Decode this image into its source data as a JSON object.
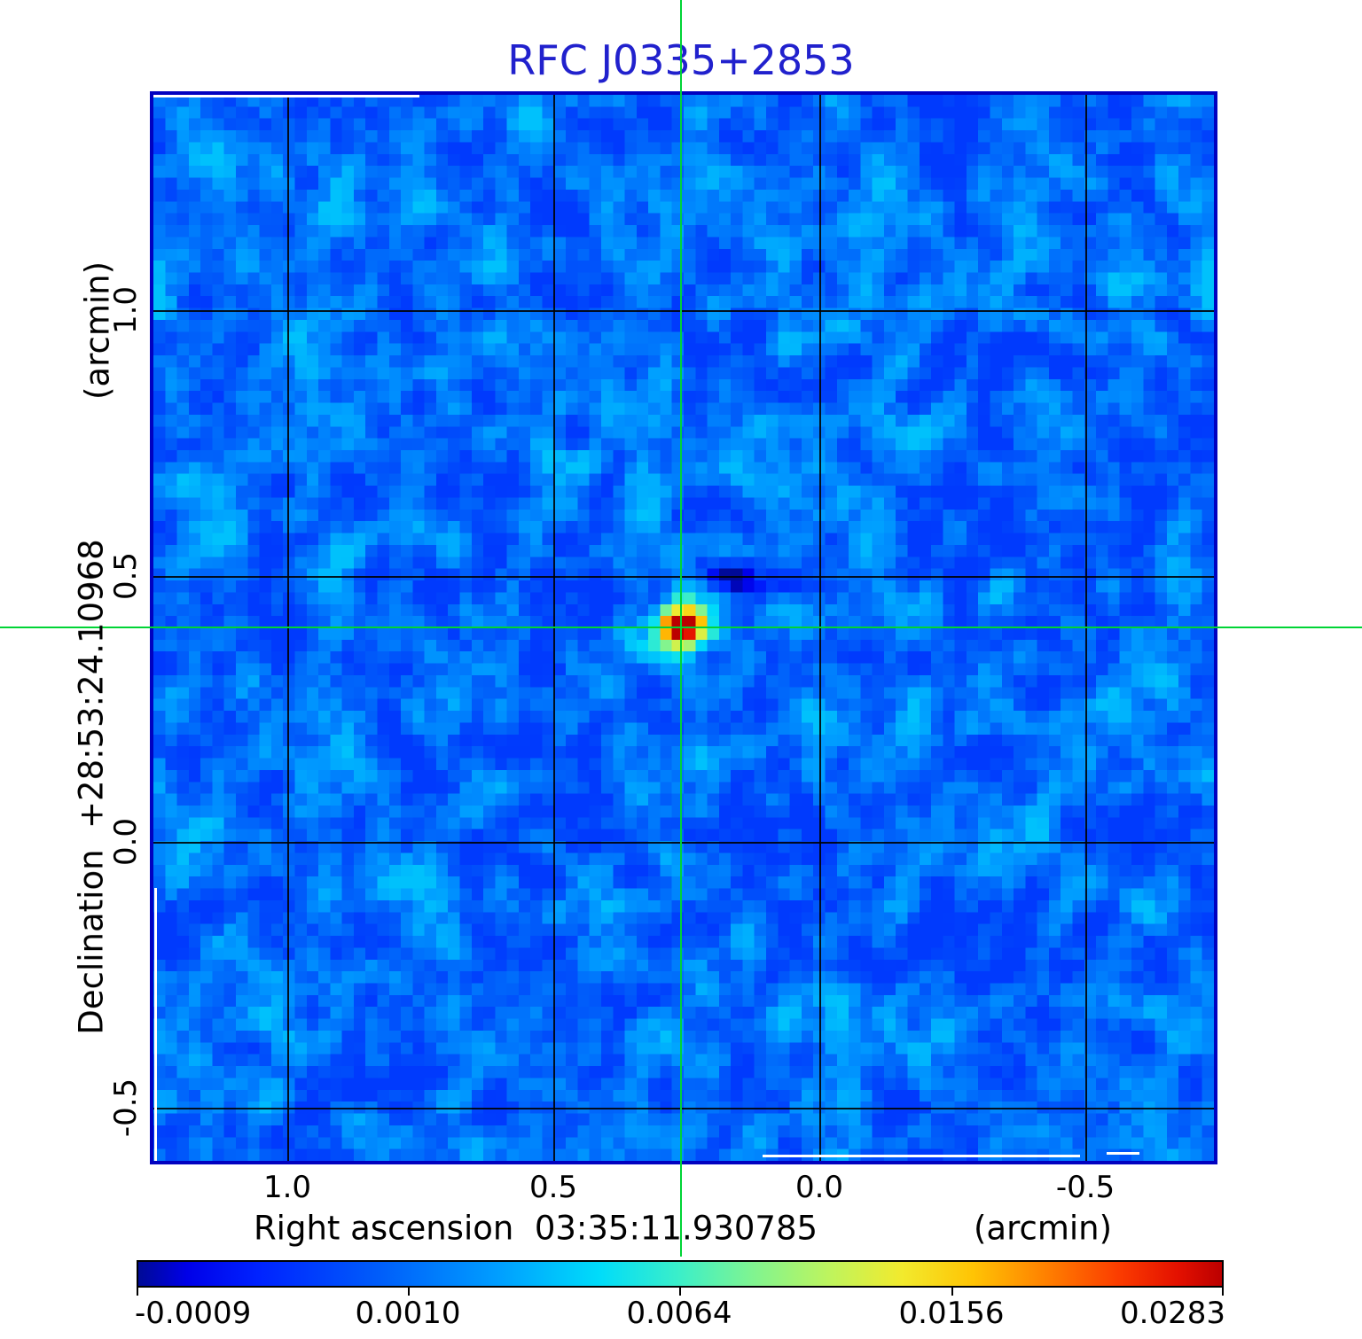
{
  "title": {
    "text": "RFC J0335+2853",
    "color": "#2121cd"
  },
  "y_axis": {
    "unit_label": "(arcmin)",
    "axis_label": "Declination  +28:53:24.10968",
    "ticks": [
      "1.0",
      "0.5",
      "0.0",
      "-0.5"
    ]
  },
  "x_axis": {
    "unit_label": "(arcmin)",
    "axis_label": "Right ascension  03:35:11.930785",
    "ticks": [
      "1.0",
      "0.5",
      "0.0",
      "-0.5"
    ]
  },
  "colorbar": {
    "tick_labels": [
      "-0.0009",
      "0.0010",
      "0.0064",
      "0.0156",
      "0.0283"
    ],
    "border_color": "#000000",
    "gradient_stops": [
      [
        0.0,
        "#000a96"
      ],
      [
        0.045,
        "#0000e8"
      ],
      [
        0.11,
        "#0022ff"
      ],
      [
        0.22,
        "#005cfa"
      ],
      [
        0.33,
        "#009dff"
      ],
      [
        0.425,
        "#00dcfa"
      ],
      [
        0.5,
        "#3cefc8"
      ],
      [
        0.565,
        "#7ef492"
      ],
      [
        0.64,
        "#c0f45c"
      ],
      [
        0.705,
        "#f2ea2d"
      ],
      [
        0.77,
        "#ffc404"
      ],
      [
        0.84,
        "#ff7e00"
      ],
      [
        0.905,
        "#fb3c00"
      ],
      [
        0.96,
        "#e31000"
      ],
      [
        1.0,
        "#bb0000"
      ]
    ]
  },
  "crosshair": {
    "color": "#00d435"
  },
  "map": {
    "frame_color": "#0101c0",
    "grid_color": "#000000",
    "background_color_hint": "#0a6aee"
  },
  "chart_data": {
    "type": "heatmap",
    "title": "RFC J0335+2853",
    "xlabel": "Right ascension  03:35:11.930785  (arcmin)",
    "ylabel": "Declination  +28:53:24.10968  (arcmin)",
    "x_ticks_arcmin": [
      1.0,
      0.5,
      0.0,
      -0.5
    ],
    "y_ticks_arcmin": [
      1.0,
      0.5,
      0.0,
      -0.5
    ],
    "x_range_arcmin": [
      1.26,
      -0.75
    ],
    "y_range_arcmin": [
      -0.61,
      1.41
    ],
    "grid": true,
    "colormap": "jet-like (dark blue to dark red)",
    "colorbar_tick_values": [
      -0.0009,
      0.001,
      0.0064,
      0.0156,
      0.0283
    ],
    "intensity_scale": "quadratic (ticks evenly spaced at 0, 25, 50, 75, 100% of bar)",
    "reference_position": {
      "ra": "03:35:11.930785",
      "dec": "+28:53:24.10968"
    },
    "crosshair_at_arcmin": {
      "x": 0.26,
      "y": 0.4
    },
    "features": {
      "point_source": {
        "x_arcmin": 0.26,
        "y_arcmin": 0.4,
        "peak_value": 0.0283
      },
      "negative_sidelobe": {
        "x_arcmin": 0.14,
        "y_arcmin": 0.49,
        "value": -0.0009
      },
      "background_noise_level": 0.001
    }
  }
}
